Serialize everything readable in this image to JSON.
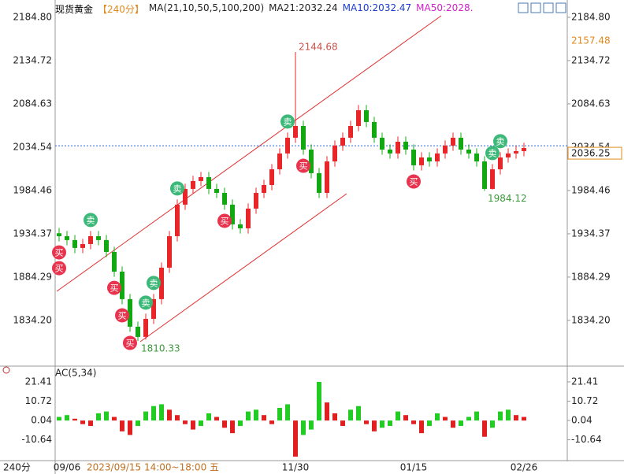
{
  "header": {
    "symbol": "现货黄金",
    "period": "【240分】",
    "indicators": [
      {
        "text": "MA(21,10,50,5,100,200)",
        "color": "#222222"
      },
      {
        "text": "MA21:2032.24",
        "color": "#222222"
      },
      {
        "text": "MA10:2032.47",
        "color": "#1a3ccc"
      },
      {
        "text": "MA50:2028.",
        "color": "#d020c8"
      }
    ]
  },
  "footer": {
    "period": "240分",
    "cursor": "2023/09/15 14:00~18:00 五"
  },
  "chart_data": [
    {
      "type": "candlestick",
      "categories": [
        null,
        "09/06",
        null,
        null,
        null,
        null,
        null,
        null,
        null,
        null,
        null,
        null,
        null,
        null,
        null,
        null,
        null,
        null,
        null,
        null,
        null,
        null,
        null,
        null,
        null,
        null,
        null,
        null,
        null,
        null,
        "11/30",
        null,
        null,
        null,
        null,
        null,
        null,
        null,
        null,
        null,
        null,
        null,
        null,
        null,
        null,
        "01/15",
        null,
        null,
        null,
        null,
        null,
        null,
        null,
        null,
        null,
        null,
        null,
        null,
        null,
        "02/26"
      ],
      "open": [
        1935.0,
        1931.6,
        1927.1,
        1918.0,
        1922.5,
        1931.6,
        1927.1,
        1913.4,
        1890.6,
        1858.8,
        1826.9,
        1815.1,
        1836.0,
        1858.8,
        1895.2,
        1931.6,
        1968.1,
        1986.3,
        1995.4,
        1999.9,
        1986.3,
        1981.7,
        1968.1,
        1945.3,
        1940.7,
        1963.5,
        1981.7,
        1990.8,
        2009.0,
        2027.3,
        2045.5,
        2059.1,
        2031.8,
        2004.5,
        1981.7,
        2018.1,
        2036.4,
        2045.5,
        2059.1,
        2077.3,
        2063.7,
        2045.5,
        2031.8,
        2027.3,
        2040.9,
        2031.8,
        2013.6,
        2022.7,
        2018.1,
        2027.3,
        2036.4,
        2045.5,
        2031.8,
        2027.3,
        2018.1,
        1986.3,
        2009.0,
        2022.7,
        2027.3,
        2030.0
      ],
      "high": [
        1941.0,
        1937.6,
        1933.1,
        1928.5,
        1937.6,
        1937.6,
        1933.1,
        1919.4,
        1896.6,
        1864.8,
        1832.9,
        1842.0,
        1864.8,
        1901.2,
        1937.6,
        1974.1,
        1992.3,
        2001.4,
        2005.9,
        2005.9,
        1992.3,
        1987.7,
        1974.1,
        1951.3,
        1969.5,
        1987.7,
        1996.8,
        2015.0,
        2033.3,
        2051.5,
        2144.68,
        2065.1,
        2037.8,
        2010.5,
        2024.1,
        2042.4,
        2051.5,
        2065.1,
        2083.3,
        2083.3,
        2069.7,
        2051.5,
        2037.8,
        2046.9,
        2046.9,
        2037.8,
        2028.7,
        2028.7,
        2033.3,
        2042.4,
        2051.5,
        2051.5,
        2037.8,
        2033.3,
        2024.1,
        2015.0,
        2028.7,
        2033.3,
        2036.0,
        2039.6
      ],
      "low": [
        1925.6,
        1921.1,
        1912.0,
        1912.0,
        1916.5,
        1921.1,
        1907.4,
        1884.6,
        1852.8,
        1820.9,
        1810.33,
        1812.0,
        1830.0,
        1852.8,
        1889.2,
        1925.6,
        1962.1,
        1980.3,
        1989.4,
        1980.3,
        1975.7,
        1962.1,
        1939.3,
        1934.7,
        1934.7,
        1957.5,
        1975.7,
        1984.8,
        2003.0,
        2021.3,
        2039.5,
        2025.8,
        1998.5,
        1975.7,
        1975.7,
        2012.1,
        2030.4,
        2039.5,
        2053.1,
        2057.7,
        2039.5,
        2025.8,
        2021.3,
        2021.3,
        2025.8,
        2007.6,
        2007.6,
        2012.1,
        2012.1,
        2021.3,
        2030.4,
        2025.8,
        2021.3,
        2012.1,
        1984.12,
        1985.5,
        2003.0,
        2016.7,
        2021.3,
        2024.0
      ],
      "close": [
        1931.6,
        1927.1,
        1918.0,
        1922.5,
        1931.6,
        1927.1,
        1913.4,
        1890.6,
        1858.8,
        1826.9,
        1815.1,
        1836.0,
        1858.8,
        1895.2,
        1931.6,
        1968.1,
        1986.3,
        1995.4,
        1999.9,
        1986.3,
        1981.7,
        1968.1,
        1945.3,
        1940.7,
        1963.5,
        1981.7,
        1990.8,
        2009.0,
        2027.3,
        2045.5,
        2059.1,
        2031.8,
        2004.5,
        1981.7,
        2018.1,
        2036.4,
        2045.5,
        2059.1,
        2077.3,
        2063.7,
        2045.5,
        2031.8,
        2027.3,
        2040.9,
        2031.8,
        2013.6,
        2022.7,
        2018.1,
        2027.3,
        2036.4,
        2045.5,
        2031.8,
        2027.3,
        2018.1,
        1986.3,
        2009.0,
        2022.7,
        2027.3,
        2030.0,
        2033.6
      ],
      "up_color": "#e8262a",
      "down_color": "#12a812",
      "ylim": [
        1781.3,
        2203.0
      ],
      "yticks": [
        {
          "value": 2184.8,
          "label": "2184.80"
        },
        2134.72,
        2084.63,
        2034.54,
        1984.46,
        1934.37,
        1884.29,
        {
          "value": 1834.2,
          "label": "1834.20"
        }
      ],
      "high_marker": {
        "value": 2157.48,
        "color": "#e08a1e"
      },
      "last_price": {
        "value": 2036.25,
        "color": "#e08a1e",
        "line_color": "#2a6ad0"
      },
      "annotations": [
        {
          "candle": 30,
          "value": 2144.68,
          "color": "#c8504a"
        },
        {
          "candle": 10,
          "value": 1810.33,
          "color": "#3a9a3a"
        },
        {
          "candle": 54,
          "value": 1984.12,
          "color": "#3a9a3a"
        }
      ],
      "signals": [
        {
          "candle": 0,
          "label": "买",
          "color": "#e8344e"
        },
        {
          "candle": 0,
          "label": "买",
          "color": "#e8344e"
        },
        {
          "candle": 4,
          "label": "卖",
          "color": "#3cb878"
        },
        {
          "candle": 7,
          "label": "买",
          "color": "#e8344e"
        },
        {
          "candle": 8,
          "label": "买",
          "color": "#e8344e"
        },
        {
          "candle": 9,
          "label": "买",
          "color": "#e8344e"
        },
        {
          "candle": 11,
          "label": "卖",
          "color": "#3cb878"
        },
        {
          "candle": 12,
          "label": "卖",
          "color": "#3cb878"
        },
        {
          "candle": 15,
          "label": "卖",
          "color": "#3cb878"
        },
        {
          "candle": 21,
          "label": "买",
          "color": "#e8344e"
        },
        {
          "candle": 29,
          "label": "卖",
          "color": "#3cb878"
        },
        {
          "candle": 31,
          "label": "买",
          "color": "#e8344e"
        },
        {
          "candle": 45,
          "label": "买",
          "color": "#e8344e"
        },
        {
          "candle": 55,
          "label": "卖",
          "color": "#3cb878"
        },
        {
          "candle": 56,
          "label": "卖",
          "color": "#3cb878"
        }
      ]
    },
    {
      "type": "bar",
      "title": "AC(5,34)",
      "values": [
        2,
        3,
        1,
        -2,
        -3,
        4,
        5,
        2,
        -6,
        -8,
        -3,
        5,
        8,
        9,
        6,
        3,
        -2,
        -5,
        -3,
        4,
        2,
        -4,
        -7,
        -3,
        5,
        6,
        3,
        -2,
        7,
        9,
        -20,
        -8,
        -5,
        21.4,
        10,
        4,
        -3,
        6,
        8,
        -2,
        -6,
        -4,
        -3,
        5,
        3,
        -2,
        -7,
        -3,
        4,
        2,
        -4,
        -3,
        2,
        5,
        -9,
        -4,
        5,
        6,
        3,
        2
      ],
      "up_color": "#22cc22",
      "down_color": "#e02020",
      "ylim": [
        -22.21,
        27.95
      ],
      "yticks": [
        21.41,
        10.72,
        0.04,
        -10.64
      ]
    }
  ]
}
